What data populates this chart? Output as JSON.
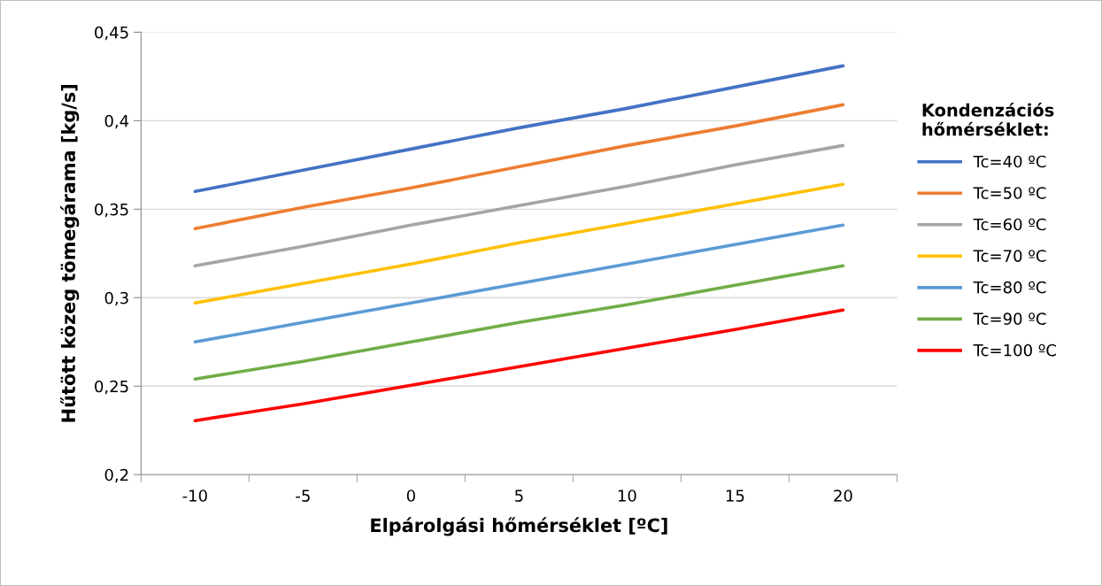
{
  "chart_data": {
    "type": "line",
    "xlabel": "Elpárolgási hőmérséklet [ºC]",
    "ylabel": "Hűtött közeg tömegárama [kg/s]",
    "legend_title": "Kondenzációs\nhőmérséklet:",
    "categories": [
      "-10",
      "-5",
      "0",
      "5",
      "10",
      "15",
      "20"
    ],
    "series": [
      {
        "name": "Tc=40 ºC",
        "color": "#4472c4",
        "values": [
          0.36,
          0.372,
          0.384,
          0.396,
          0.407,
          0.419,
          0.431
        ]
      },
      {
        "name": "Tc=50 ºC",
        "color": "#ed7d31",
        "values": [
          0.339,
          0.351,
          0.362,
          0.374,
          0.386,
          0.397,
          0.409
        ]
      },
      {
        "name": "Tc=60 ºC",
        "color": "#a5a5a5",
        "values": [
          0.318,
          0.329,
          0.341,
          0.352,
          0.363,
          0.375,
          0.386
        ]
      },
      {
        "name": "Tc=70 ºC",
        "color": "#ffc000",
        "values": [
          0.297,
          0.308,
          0.319,
          0.331,
          0.342,
          0.353,
          0.364
        ]
      },
      {
        "name": "Tc=80 ºC",
        "color": "#5b9bd5",
        "values": [
          0.275,
          0.286,
          0.297,
          0.308,
          0.319,
          0.33,
          0.341
        ]
      },
      {
        "name": "Tc=90 ºC",
        "color": "#70ad47",
        "values": [
          0.254,
          0.264,
          0.275,
          0.286,
          0.296,
          0.307,
          0.318
        ]
      },
      {
        "name": "Tc=100 ºC",
        "color": "#ff0000",
        "values": [
          0.2305,
          0.24,
          0.2505,
          0.261,
          0.2715,
          0.282,
          0.293
        ]
      }
    ],
    "ylim": [
      0.2,
      0.45
    ],
    "yticks": [
      {
        "value": 0.2,
        "label": "0,2"
      },
      {
        "value": 0.25,
        "label": "0,25"
      },
      {
        "value": 0.3,
        "label": "0,3"
      },
      {
        "value": 0.35,
        "label": "0,35"
      },
      {
        "value": 0.4,
        "label": "0,4"
      },
      {
        "value": 0.45,
        "label": "0,45"
      }
    ],
    "grid": "y",
    "legend": "right",
    "marker": "none",
    "line_style": "solid"
  }
}
